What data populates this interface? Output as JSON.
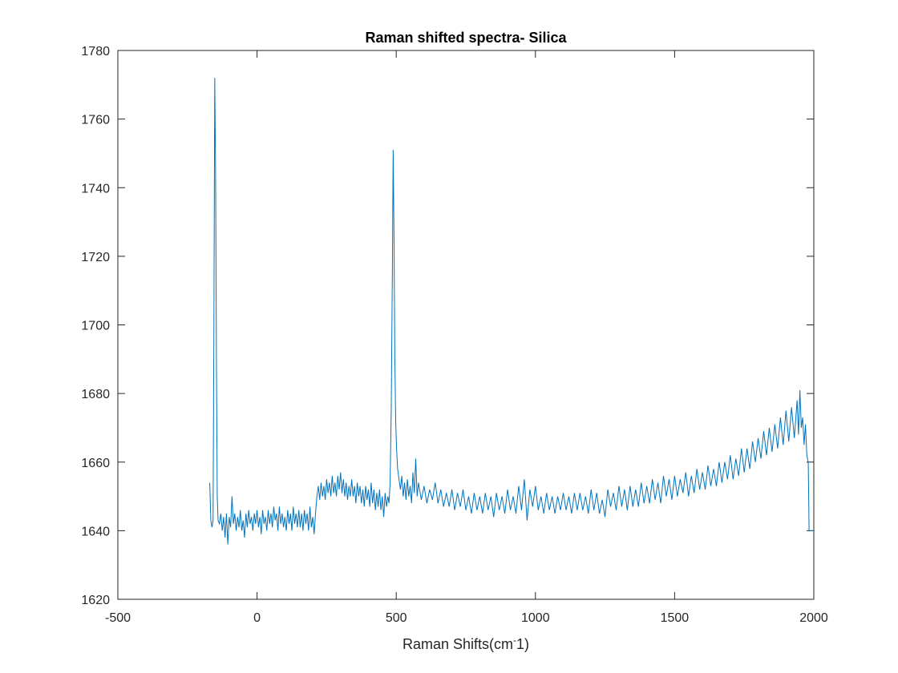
{
  "chart_data": {
    "type": "line",
    "title": "Raman shifted spectra- Silica",
    "xlabel": "Raman Shifts(cm",
    "xlabel_sup": "-",
    "xlabel_tail": "1)",
    "ylabel": "",
    "xlim": [
      -500,
      2000
    ],
    "ylim": [
      1620,
      1780
    ],
    "xticks": [
      -500,
      0,
      500,
      1000,
      1500,
      2000
    ],
    "yticks": [
      1620,
      1640,
      1660,
      1680,
      1700,
      1720,
      1740,
      1760,
      1780
    ],
    "grid": false,
    "line_color": "#0072BD",
    "series": [
      {
        "values": [
          [
            -170,
            1654
          ],
          [
            -166,
            1643
          ],
          [
            -162,
            1641
          ],
          [
            -158,
            1643
          ],
          [
            -155,
            1700
          ],
          [
            -152,
            1772
          ],
          [
            -149,
            1745
          ],
          [
            -146,
            1690
          ],
          [
            -143,
            1650
          ],
          [
            -140,
            1643
          ],
          [
            -135,
            1642
          ],
          [
            -130,
            1645
          ],
          [
            -125,
            1640
          ],
          [
            -120,
            1644
          ],
          [
            -115,
            1638
          ],
          [
            -110,
            1645
          ],
          [
            -105,
            1636
          ],
          [
            -100,
            1644
          ],
          [
            -95,
            1641
          ],
          [
            -90,
            1650
          ],
          [
            -85,
            1642
          ],
          [
            -80,
            1645
          ],
          [
            -75,
            1640
          ],
          [
            -70,
            1644
          ],
          [
            -65,
            1641
          ],
          [
            -60,
            1646
          ],
          [
            -55,
            1640
          ],
          [
            -50,
            1643
          ],
          [
            -45,
            1638
          ],
          [
            -40,
            1645
          ],
          [
            -35,
            1641
          ],
          [
            -30,
            1646
          ],
          [
            -25,
            1642
          ],
          [
            -20,
            1644
          ],
          [
            -15,
            1640
          ],
          [
            -10,
            1645
          ],
          [
            -5,
            1642
          ],
          [
            0,
            1646
          ],
          [
            5,
            1641
          ],
          [
            10,
            1644
          ],
          [
            15,
            1639
          ],
          [
            20,
            1646
          ],
          [
            25,
            1642
          ],
          [
            30,
            1644
          ],
          [
            35,
            1640
          ],
          [
            40,
            1646
          ],
          [
            45,
            1642
          ],
          [
            50,
            1645
          ],
          [
            55,
            1641
          ],
          [
            60,
            1647
          ],
          [
            65,
            1643
          ],
          [
            70,
            1645
          ],
          [
            75,
            1640
          ],
          [
            80,
            1647
          ],
          [
            85,
            1642
          ],
          [
            90,
            1645
          ],
          [
            95,
            1641
          ],
          [
            100,
            1644
          ],
          [
            105,
            1640
          ],
          [
            110,
            1646
          ],
          [
            115,
            1642
          ],
          [
            120,
            1645
          ],
          [
            125,
            1640
          ],
          [
            130,
            1647
          ],
          [
            135,
            1642
          ],
          [
            140,
            1645
          ],
          [
            145,
            1641
          ],
          [
            150,
            1646
          ],
          [
            155,
            1641
          ],
          [
            160,
            1645
          ],
          [
            165,
            1640
          ],
          [
            170,
            1646
          ],
          [
            175,
            1642
          ],
          [
            180,
            1645
          ],
          [
            185,
            1640
          ],
          [
            190,
            1647
          ],
          [
            195,
            1641
          ],
          [
            200,
            1644
          ],
          [
            205,
            1639
          ],
          [
            210,
            1645
          ],
          [
            215,
            1650
          ],
          [
            220,
            1653
          ],
          [
            225,
            1649
          ],
          [
            230,
            1654
          ],
          [
            235,
            1650
          ],
          [
            240,
            1653
          ],
          [
            245,
            1649
          ],
          [
            250,
            1655
          ],
          [
            255,
            1651
          ],
          [
            260,
            1654
          ],
          [
            265,
            1650
          ],
          [
            270,
            1656
          ],
          [
            275,
            1651
          ],
          [
            280,
            1654
          ],
          [
            285,
            1650
          ],
          [
            290,
            1656
          ],
          [
            295,
            1652
          ],
          [
            300,
            1657
          ],
          [
            305,
            1651
          ],
          [
            310,
            1655
          ],
          [
            315,
            1650
          ],
          [
            320,
            1654
          ],
          [
            325,
            1649
          ],
          [
            330,
            1653
          ],
          [
            335,
            1650
          ],
          [
            340,
            1655
          ],
          [
            345,
            1650
          ],
          [
            350,
            1653
          ],
          [
            355,
            1648
          ],
          [
            360,
            1654
          ],
          [
            365,
            1650
          ],
          [
            370,
            1653
          ],
          [
            375,
            1648
          ],
          [
            380,
            1652
          ],
          [
            385,
            1647
          ],
          [
            390,
            1653
          ],
          [
            395,
            1649
          ],
          [
            400,
            1652
          ],
          [
            405,
            1647
          ],
          [
            410,
            1654
          ],
          [
            415,
            1648
          ],
          [
            420,
            1652
          ],
          [
            425,
            1646
          ],
          [
            430,
            1651
          ],
          [
            435,
            1647
          ],
          [
            440,
            1652
          ],
          [
            445,
            1646
          ],
          [
            450,
            1650
          ],
          [
            455,
            1644
          ],
          [
            460,
            1651
          ],
          [
            465,
            1647
          ],
          [
            470,
            1650
          ],
          [
            474,
            1648
          ],
          [
            478,
            1654
          ],
          [
            482,
            1675
          ],
          [
            486,
            1715
          ],
          [
            489,
            1751
          ],
          [
            492,
            1725
          ],
          [
            495,
            1690
          ],
          [
            498,
            1672
          ],
          [
            501,
            1664
          ],
          [
            505,
            1658
          ],
          [
            510,
            1655
          ],
          [
            515,
            1652
          ],
          [
            520,
            1656
          ],
          [
            525,
            1650
          ],
          [
            530,
            1654
          ],
          [
            535,
            1649
          ],
          [
            540,
            1655
          ],
          [
            545,
            1650
          ],
          [
            550,
            1653
          ],
          [
            555,
            1648
          ],
          [
            560,
            1657
          ],
          [
            565,
            1651
          ],
          [
            570,
            1661
          ],
          [
            575,
            1650
          ],
          [
            580,
            1654
          ],
          [
            590,
            1649
          ],
          [
            600,
            1653
          ],
          [
            610,
            1648
          ],
          [
            620,
            1652
          ],
          [
            630,
            1649
          ],
          [
            640,
            1654
          ],
          [
            650,
            1648
          ],
          [
            660,
            1652
          ],
          [
            670,
            1647
          ],
          [
            680,
            1651
          ],
          [
            690,
            1647
          ],
          [
            700,
            1652
          ],
          [
            710,
            1646
          ],
          [
            720,
            1651
          ],
          [
            730,
            1647
          ],
          [
            740,
            1652
          ],
          [
            750,
            1646
          ],
          [
            760,
            1650
          ],
          [
            770,
            1645
          ],
          [
            780,
            1651
          ],
          [
            790,
            1646
          ],
          [
            800,
            1650
          ],
          [
            810,
            1645
          ],
          [
            820,
            1651
          ],
          [
            830,
            1646
          ],
          [
            840,
            1650
          ],
          [
            850,
            1644
          ],
          [
            860,
            1651
          ],
          [
            870,
            1646
          ],
          [
            880,
            1650
          ],
          [
            890,
            1645
          ],
          [
            900,
            1652
          ],
          [
            910,
            1646
          ],
          [
            920,
            1650
          ],
          [
            930,
            1645
          ],
          [
            940,
            1653
          ],
          [
            950,
            1646
          ],
          [
            960,
            1655
          ],
          [
            970,
            1643
          ],
          [
            980,
            1652
          ],
          [
            990,
            1647
          ],
          [
            1000,
            1653
          ],
          [
            1010,
            1646
          ],
          [
            1020,
            1650
          ],
          [
            1030,
            1645
          ],
          [
            1040,
            1651
          ],
          [
            1050,
            1646
          ],
          [
            1060,
            1650
          ],
          [
            1070,
            1645
          ],
          [
            1080,
            1650
          ],
          [
            1090,
            1646
          ],
          [
            1100,
            1651
          ],
          [
            1110,
            1646
          ],
          [
            1120,
            1650
          ],
          [
            1130,
            1645
          ],
          [
            1140,
            1651
          ],
          [
            1150,
            1646
          ],
          [
            1160,
            1651
          ],
          [
            1170,
            1646
          ],
          [
            1180,
            1650
          ],
          [
            1190,
            1645
          ],
          [
            1200,
            1652
          ],
          [
            1210,
            1646
          ],
          [
            1220,
            1651
          ],
          [
            1230,
            1645
          ],
          [
            1240,
            1649
          ],
          [
            1250,
            1644
          ],
          [
            1260,
            1652
          ],
          [
            1270,
            1647
          ],
          [
            1280,
            1651
          ],
          [
            1290,
            1646
          ],
          [
            1300,
            1653
          ],
          [
            1310,
            1647
          ],
          [
            1320,
            1652
          ],
          [
            1330,
            1646
          ],
          [
            1340,
            1653
          ],
          [
            1350,
            1647
          ],
          [
            1360,
            1652
          ],
          [
            1370,
            1647
          ],
          [
            1380,
            1654
          ],
          [
            1390,
            1648
          ],
          [
            1400,
            1653
          ],
          [
            1410,
            1648
          ],
          [
            1420,
            1655
          ],
          [
            1430,
            1649
          ],
          [
            1440,
            1654
          ],
          [
            1450,
            1648
          ],
          [
            1460,
            1656
          ],
          [
            1470,
            1650
          ],
          [
            1480,
            1655
          ],
          [
            1490,
            1649
          ],
          [
            1500,
            1656
          ],
          [
            1510,
            1650
          ],
          [
            1520,
            1655
          ],
          [
            1530,
            1651
          ],
          [
            1540,
            1657
          ],
          [
            1550,
            1650
          ],
          [
            1560,
            1656
          ],
          [
            1570,
            1651
          ],
          [
            1580,
            1658
          ],
          [
            1590,
            1652
          ],
          [
            1600,
            1657
          ],
          [
            1610,
            1652
          ],
          [
            1620,
            1659
          ],
          [
            1630,
            1653
          ],
          [
            1640,
            1658
          ],
          [
            1650,
            1653
          ],
          [
            1660,
            1660
          ],
          [
            1670,
            1654
          ],
          [
            1680,
            1660
          ],
          [
            1690,
            1655
          ],
          [
            1700,
            1662
          ],
          [
            1710,
            1655
          ],
          [
            1720,
            1661
          ],
          [
            1730,
            1656
          ],
          [
            1740,
            1664
          ],
          [
            1750,
            1657
          ],
          [
            1760,
            1664
          ],
          [
            1770,
            1658
          ],
          [
            1780,
            1666
          ],
          [
            1790,
            1660
          ],
          [
            1800,
            1667
          ],
          [
            1810,
            1661
          ],
          [
            1820,
            1669
          ],
          [
            1830,
            1662
          ],
          [
            1840,
            1670
          ],
          [
            1850,
            1663
          ],
          [
            1860,
            1671
          ],
          [
            1870,
            1664
          ],
          [
            1880,
            1673
          ],
          [
            1890,
            1665
          ],
          [
            1900,
            1675
          ],
          [
            1910,
            1666
          ],
          [
            1920,
            1676
          ],
          [
            1930,
            1667
          ],
          [
            1940,
            1678
          ],
          [
            1945,
            1668
          ],
          [
            1950,
            1681
          ],
          [
            1955,
            1670
          ],
          [
            1960,
            1673
          ],
          [
            1965,
            1665
          ],
          [
            1970,
            1671
          ],
          [
            1975,
            1662
          ],
          [
            1980,
            1660
          ],
          [
            1982,
            1647
          ],
          [
            1983,
            1640
          ],
          [
            2000,
            1640
          ]
        ]
      }
    ]
  }
}
